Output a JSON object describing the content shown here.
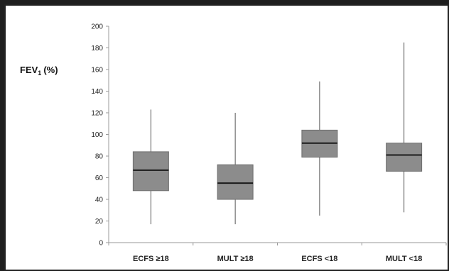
{
  "chart_data": {
    "type": "box",
    "ylabel": "FEV",
    "ylabel_sub": "1",
    "ylabel_unit": "(%)",
    "ylim": [
      0,
      200
    ],
    "yticks": [
      0,
      20,
      40,
      60,
      80,
      100,
      120,
      140,
      160,
      180,
      200
    ],
    "grid": false,
    "legend": "none",
    "colors": {
      "box": "#8c8c8c",
      "box_edge": "#6e6e6e",
      "median": "#1a1a1a",
      "whisker": "#555555",
      "axis": "#9a9a9a"
    },
    "categories": [
      "ECFS ≥18",
      "MULT ≥18",
      "ECFS <18",
      "MULT <18"
    ],
    "boxes": [
      {
        "min": 17,
        "q1": 48,
        "median": 67,
        "q3": 84,
        "max": 123
      },
      {
        "min": 17,
        "q1": 40,
        "median": 55,
        "q3": 72,
        "max": 120
      },
      {
        "min": 25,
        "q1": 79,
        "median": 92,
        "q3": 104,
        "max": 149
      },
      {
        "min": 28,
        "q1": 66,
        "median": 81,
        "q3": 92,
        "max": 185
      }
    ]
  }
}
